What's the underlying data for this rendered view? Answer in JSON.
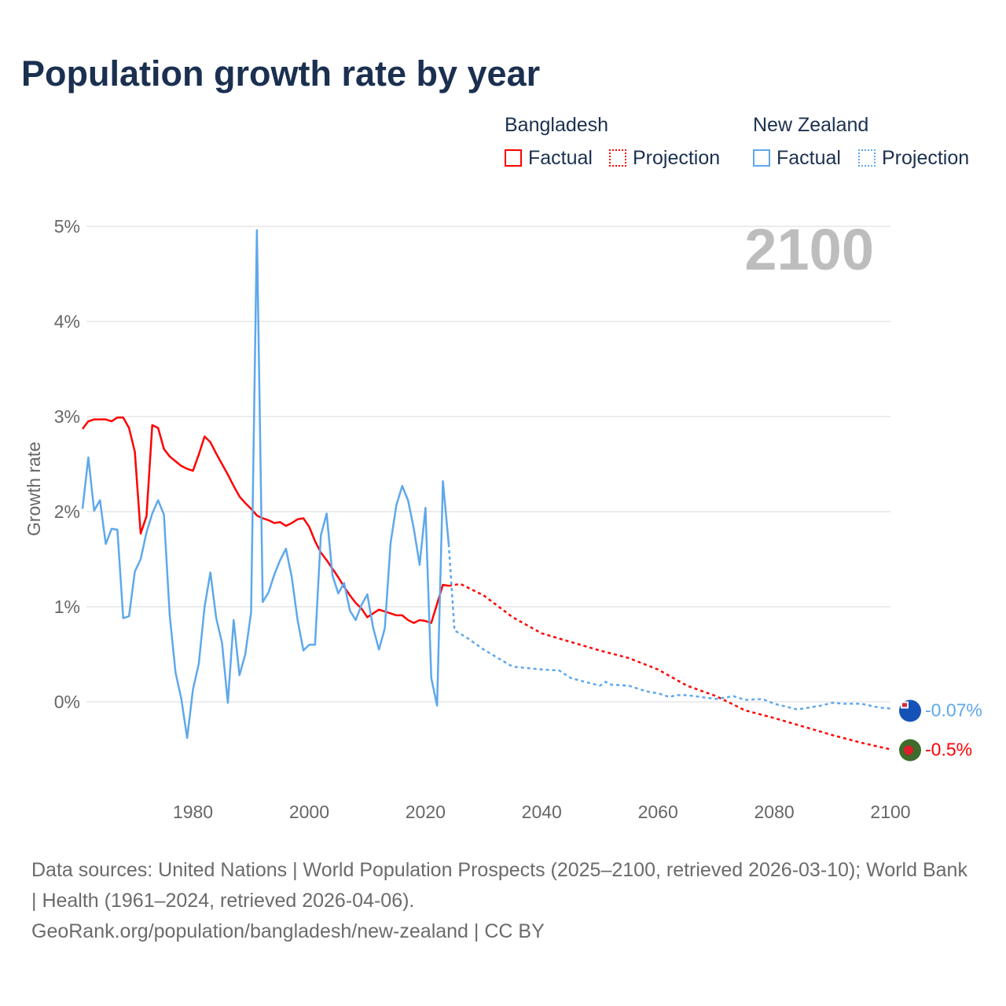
{
  "title": "Population growth rate by year",
  "legend": {
    "groups": [
      {
        "name": "Bangladesh",
        "factual": "Factual",
        "projection": "Projection",
        "color": "#ff0000"
      },
      {
        "name": "New Zealand",
        "factual": "Factual",
        "projection": "Projection",
        "color": "#5ea8ec"
      }
    ]
  },
  "year_overlay": "2100",
  "footer": {
    "sources": "Data sources: United Nations | World Population Prospects (2025–2100, retrieved 2026-03-10); World Bank | Health (1961–2024, retrieved 2026-04-06).",
    "link": "GeoRank.org/population/bangladesh/new-zealand | CC BY"
  },
  "chart_data": {
    "type": "line",
    "title": "Population growth rate by year",
    "xlabel": "",
    "ylabel": "Growth rate",
    "xlim": [
      1961,
      2100
    ],
    "ylim": [
      -0.9,
      5.0
    ],
    "xticks": [
      1980,
      2000,
      2020,
      2040,
      2060,
      2080,
      2100
    ],
    "xtick_labels": [
      "1980",
      "2000",
      "2020",
      "2040",
      "2060",
      "2080",
      "2100"
    ],
    "yticks": [
      0,
      1,
      2,
      3,
      4,
      5
    ],
    "ytick_labels": [
      "0%",
      "1%",
      "2%",
      "3%",
      "4%",
      "5%"
    ],
    "grid": true,
    "legend_position": "top-right",
    "series": [
      {
        "name": "Bangladesh",
        "color": "#ff0000",
        "end_label": "-0.5%",
        "factual": {
          "start_year": 1961,
          "values": [
            2.87,
            2.95,
            2.97,
            2.97,
            2.97,
            2.95,
            2.99,
            2.99,
            2.88,
            2.63,
            1.77,
            1.95,
            2.91,
            2.88,
            2.66,
            2.58,
            2.53,
            2.48,
            2.45,
            2.43,
            2.6,
            2.79,
            2.73,
            2.61,
            2.5,
            2.39,
            2.27,
            2.16,
            2.09,
            2.03,
            1.96,
            1.93,
            1.91,
            1.88,
            1.89,
            1.85,
            1.88,
            1.92,
            1.93,
            1.84,
            1.69,
            1.57,
            1.49,
            1.4,
            1.31,
            1.21,
            1.12,
            1.04,
            0.98,
            0.89,
            0.93,
            0.97,
            0.95,
            0.93,
            0.91,
            0.91,
            0.86,
            0.83,
            0.86,
            0.85,
            0.83,
            1.03,
            1.23,
            1.22
          ]
        },
        "projection": {
          "x": [
            2024,
            2026,
            2030,
            2035,
            2040,
            2045,
            2050,
            2055,
            2060,
            2065,
            2070,
            2075,
            2080,
            2085,
            2090,
            2095,
            2100
          ],
          "values": [
            1.22,
            1.24,
            1.12,
            0.89,
            0.72,
            0.63,
            0.54,
            0.46,
            0.34,
            0.17,
            0.06,
            -0.09,
            -0.17,
            -0.26,
            -0.35,
            -0.43,
            -0.5
          ]
        }
      },
      {
        "name": "New Zealand",
        "color": "#5ea8ec",
        "end_label": "-0.07%",
        "factual": {
          "start_year": 1961,
          "values": [
            2.03,
            2.57,
            2.01,
            2.12,
            1.66,
            1.82,
            1.81,
            0.88,
            0.9,
            1.37,
            1.5,
            1.78,
            1.98,
            2.12,
            1.97,
            0.91,
            0.31,
            0.03,
            -0.38,
            0.13,
            0.4,
            1.0,
            1.36,
            0.88,
            0.62,
            -0.01,
            0.86,
            0.28,
            0.5,
            0.94,
            4.96,
            1.05,
            1.15,
            1.34,
            1.49,
            1.61,
            1.31,
            0.86,
            0.54,
            0.6,
            0.6,
            1.75,
            1.98,
            1.33,
            1.14,
            1.25,
            0.96,
            0.86,
            1.02,
            1.13,
            0.78,
            0.55,
            0.77,
            1.67,
            2.07,
            2.27,
            2.12,
            1.82,
            1.44,
            2.04,
            0.25,
            -0.04,
            2.32,
            1.66
          ]
        },
        "projection": {
          "x": [
            2024,
            2025,
            2027,
            2030,
            2035,
            2040,
            2043,
            2045,
            2050,
            2051,
            2052,
            2055,
            2058,
            2060,
            2062,
            2063,
            2065,
            2070,
            2073,
            2075,
            2078,
            2080,
            2084,
            2088,
            2090,
            2092,
            2095,
            2098,
            2100
          ],
          "values": [
            1.66,
            0.75,
            0.68,
            0.55,
            0.37,
            0.34,
            0.33,
            0.25,
            0.17,
            0.21,
            0.18,
            0.17,
            0.11,
            0.09,
            0.05,
            0.07,
            0.07,
            0.03,
            0.06,
            0.02,
            0.03,
            -0.02,
            -0.08,
            -0.04,
            -0.01,
            -0.02,
            -0.02,
            -0.06,
            -0.07
          ]
        }
      }
    ]
  }
}
